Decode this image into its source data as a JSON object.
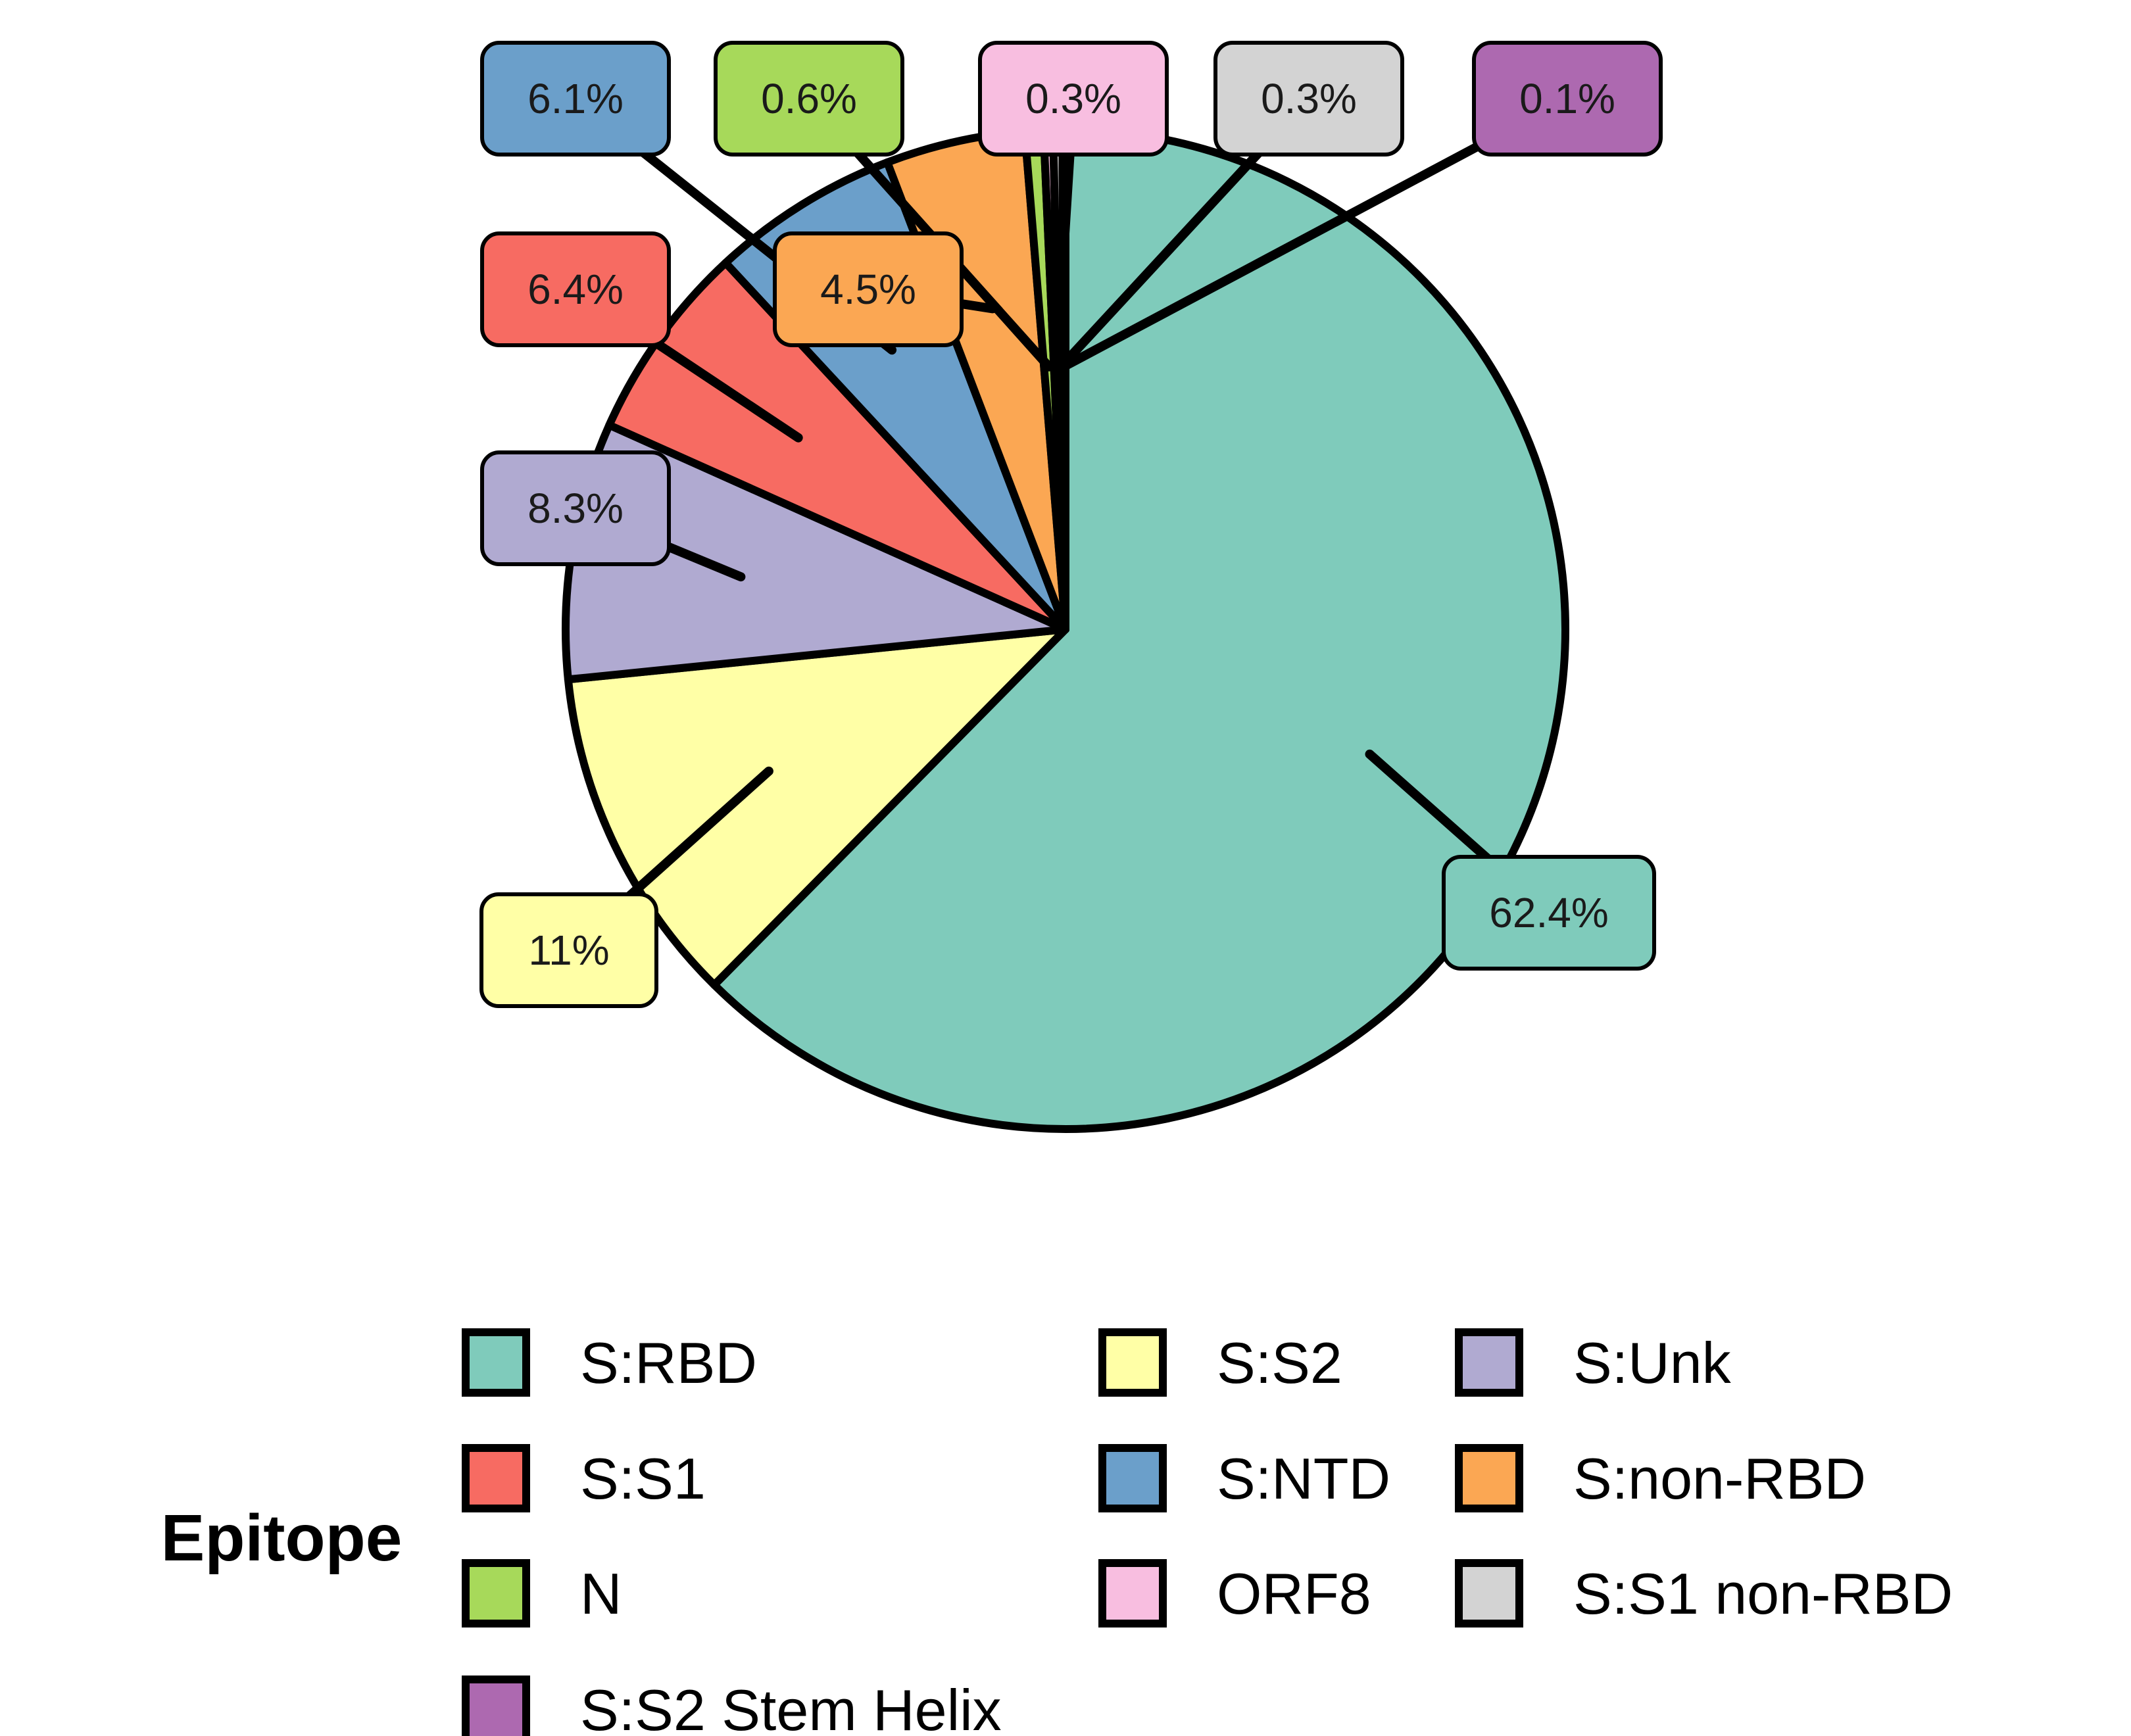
{
  "chart_data": {
    "type": "pie",
    "start": "12 o'clock",
    "direction": "clockwise",
    "slices": [
      {
        "label": "S:RBD",
        "value": 62.4,
        "display": "62.4%",
        "color": "#7FCBBB"
      },
      {
        "label": "S:S2",
        "value": 11.0,
        "display": "11%",
        "color": "#FFFFA6"
      },
      {
        "label": "S:Unk",
        "value": 8.3,
        "display": "8.3%",
        "color": "#B0AAD1"
      },
      {
        "label": "S:S1",
        "value": 6.4,
        "display": "6.4%",
        "color": "#F76B62"
      },
      {
        "label": "S:NTD",
        "value": 6.1,
        "display": "6.1%",
        "color": "#6B9FCA"
      },
      {
        "label": "S:non-RBD",
        "value": 4.5,
        "display": "4.5%",
        "color": "#FBA753"
      },
      {
        "label": "N",
        "value": 0.6,
        "display": "0.6%",
        "color": "#A7D95A"
      },
      {
        "label": "ORF8",
        "value": 0.3,
        "display": "0.3%",
        "color": "#F8BEE0"
      },
      {
        "label": "S:S1 non-RBD",
        "value": 0.3,
        "display": "0.3%",
        "color": "#D3D3D3"
      },
      {
        "label": "S:S2 Stem Helix",
        "value": 0.1,
        "display": "0.1%",
        "color": "#AD69B0"
      }
    ],
    "legend": {
      "title": "Epitope",
      "position": "bottom",
      "entries": [
        "S:RBD",
        "S:S2",
        "S:Unk",
        "S:S1",
        "S:NTD",
        "S:non-RBD",
        "N",
        "ORF8",
        "S:S1 non-RBD",
        "S:S2 Stem Helix"
      ]
    }
  }
}
